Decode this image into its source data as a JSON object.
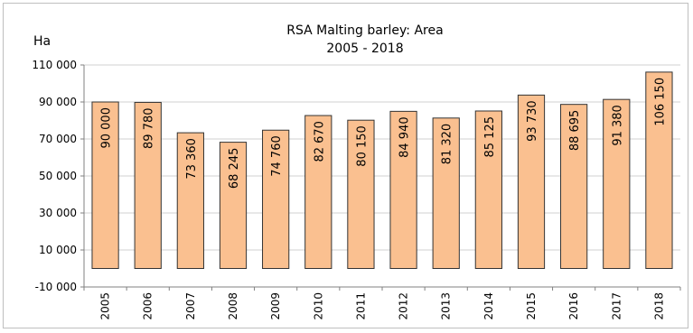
{
  "chart_data": {
    "type": "bar",
    "title": "RSA  Malting barley: Area",
    "subtitle": "2005 - 2018",
    "ylabel": "Ha",
    "xlabel": "",
    "categories": [
      "2005",
      "2006",
      "2007",
      "2008",
      "2009",
      "2010",
      "2011",
      "2012",
      "2013",
      "2014",
      "2015",
      "2016",
      "2017",
      "2018"
    ],
    "values": [
      90000,
      89780,
      73360,
      68245,
      74760,
      82670,
      80150,
      84940,
      81320,
      85125,
      93730,
      88695,
      91380,
      106150
    ],
    "data_labels": [
      "90 000",
      "89 780",
      "73 360",
      "68 245",
      "74 760",
      "82 670",
      "80 150",
      "84 940",
      "81 320",
      "85 125",
      "93 730",
      "88 695",
      "91 380",
      "106 150"
    ],
    "ylim": [
      -10000,
      110000
    ],
    "yticks": [
      -10000,
      10000,
      30000,
      50000,
      70000,
      90000,
      110000
    ],
    "ytick_labels": [
      "-10 000",
      "10 000",
      "30 000",
      "50 000",
      "70 000",
      "90 000",
      "110 000"
    ],
    "grid": true,
    "legend": "none",
    "bar_color": "#fac090"
  }
}
